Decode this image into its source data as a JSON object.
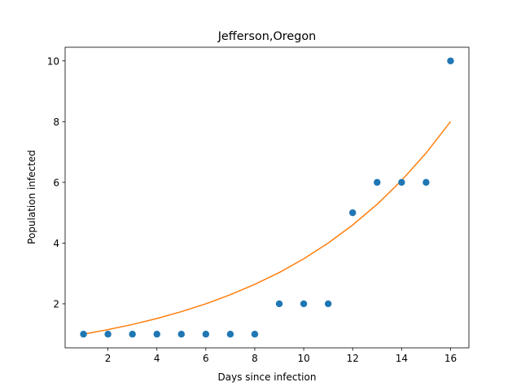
{
  "chart_data": {
    "type": "scatter",
    "title": "Jefferson,Oregon",
    "xlabel": "Days since infection",
    "ylabel": "Population infected",
    "xlim": [
      0.25,
      16.75
    ],
    "ylim": [
      0.55,
      10.45
    ],
    "xticks": [
      2,
      4,
      6,
      8,
      10,
      12,
      14,
      16
    ],
    "yticks": [
      2,
      4,
      6,
      8,
      10
    ],
    "grid": false,
    "series": [
      {
        "kind": "scatter",
        "color": "#1f77b4",
        "x": [
          1,
          2,
          3,
          4,
          5,
          6,
          7,
          8,
          9,
          10,
          11,
          12,
          13,
          14,
          15,
          16
        ],
        "y": [
          1,
          1,
          1,
          1,
          1,
          1,
          1,
          1,
          2,
          2,
          2,
          5,
          6,
          6,
          6,
          10
        ]
      },
      {
        "kind": "line",
        "color": "#ff7f0e",
        "x": [
          1,
          2,
          3,
          4,
          5,
          6,
          7,
          8,
          9,
          10,
          11,
          12,
          13,
          14,
          15,
          16
        ],
        "y": [
          1.0,
          1.149,
          1.32,
          1.516,
          1.742,
          2.0,
          2.298,
          2.64,
          3.03,
          3.482,
          4.0,
          4.595,
          5.278,
          6.063,
          6.964,
          8.0
        ]
      }
    ]
  }
}
